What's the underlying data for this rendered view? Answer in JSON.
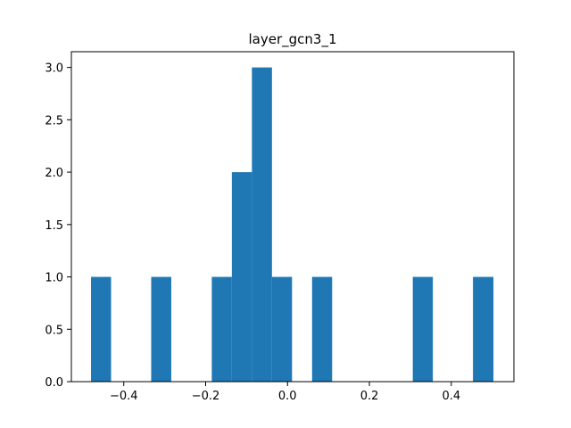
{
  "chart_data": {
    "type": "bar",
    "title": "layer_gcn3_1",
    "xlabel": "",
    "ylabel": "",
    "xlim": [
      -0.528,
      0.553
    ],
    "ylim": [
      0,
      3.15
    ],
    "bar_color": "#1f77b4",
    "bins": [
      {
        "x0": -0.48,
        "x1": -0.431,
        "count": 1
      },
      {
        "x0": -0.431,
        "x1": -0.382,
        "count": 0
      },
      {
        "x0": -0.382,
        "x1": -0.333,
        "count": 0
      },
      {
        "x0": -0.333,
        "x1": -0.284,
        "count": 1
      },
      {
        "x0": -0.284,
        "x1": -0.234,
        "count": 0
      },
      {
        "x0": -0.234,
        "x1": -0.185,
        "count": 0
      },
      {
        "x0": -0.185,
        "x1": -0.136,
        "count": 1
      },
      {
        "x0": -0.136,
        "x1": -0.087,
        "count": 2
      },
      {
        "x0": -0.087,
        "x1": -0.038,
        "count": 3
      },
      {
        "x0": -0.038,
        "x1": 0.011,
        "count": 1
      },
      {
        "x0": 0.011,
        "x1": 0.06,
        "count": 0
      },
      {
        "x0": 0.06,
        "x1": 0.109,
        "count": 1
      },
      {
        "x0": 0.109,
        "x1": 0.159,
        "count": 0
      },
      {
        "x0": 0.159,
        "x1": 0.208,
        "count": 0
      },
      {
        "x0": 0.208,
        "x1": 0.257,
        "count": 0
      },
      {
        "x0": 0.257,
        "x1": 0.306,
        "count": 0
      },
      {
        "x0": 0.306,
        "x1": 0.355,
        "count": 1
      },
      {
        "x0": 0.355,
        "x1": 0.404,
        "count": 0
      },
      {
        "x0": 0.404,
        "x1": 0.453,
        "count": 0
      },
      {
        "x0": 0.453,
        "x1": 0.503,
        "count": 1
      }
    ],
    "xticks": [
      {
        "value": -0.4,
        "label": "−0.4"
      },
      {
        "value": -0.2,
        "label": "−0.2"
      },
      {
        "value": 0.0,
        "label": "0.0"
      },
      {
        "value": 0.2,
        "label": "0.2"
      },
      {
        "value": 0.4,
        "label": "0.4"
      }
    ],
    "yticks": [
      {
        "value": 0.0,
        "label": "0.0"
      },
      {
        "value": 0.5,
        "label": "0.5"
      },
      {
        "value": 1.0,
        "label": "1.0"
      },
      {
        "value": 1.5,
        "label": "1.5"
      },
      {
        "value": 2.0,
        "label": "2.0"
      },
      {
        "value": 2.5,
        "label": "2.5"
      },
      {
        "value": 3.0,
        "label": "3.0"
      }
    ],
    "grid": false,
    "legend": "none"
  }
}
